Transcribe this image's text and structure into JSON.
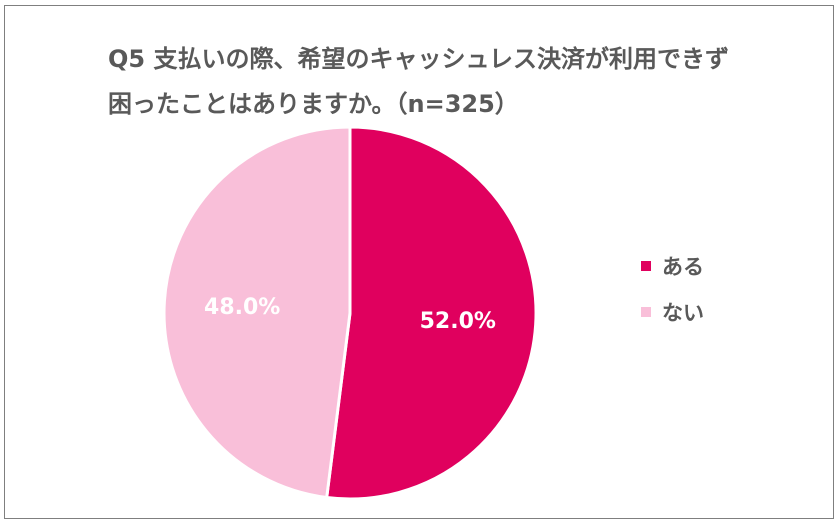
{
  "chart_data": {
    "type": "pie",
    "title_lines": [
      "Q5 支払いの際、希望のキャッシュレス決済が利用できず",
      "困ったことはありますか。（n=325）"
    ],
    "slices": [
      {
        "name": "ある",
        "value": 52.0,
        "label": "52.0%",
        "color": "#e0005e"
      },
      {
        "name": "ない",
        "value": 48.0,
        "label": "48.0%",
        "color": "#f9bfd9"
      }
    ],
    "start": "12 o'clock",
    "direction": "clockwise",
    "legend_position": "right"
  }
}
